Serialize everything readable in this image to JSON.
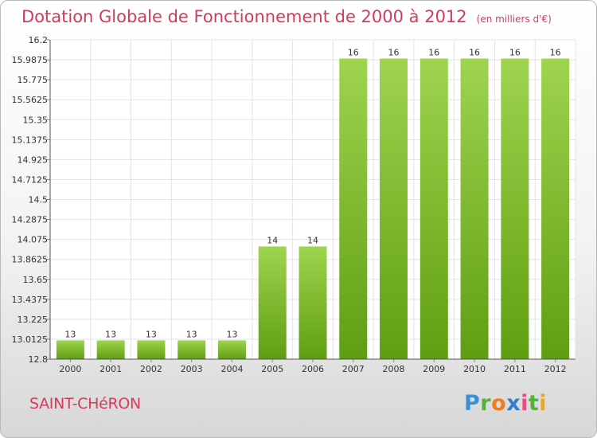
{
  "header": {
    "title": "Dotation Globale de Fonctionnement de 2000 à 2012",
    "subtitle": "(en milliers d'€)"
  },
  "footer": {
    "commune": "SAINT-CHéRON",
    "logo": {
      "p": "P",
      "r": "r",
      "o": "o",
      "x": "x",
      "i1": "i",
      "t": "t",
      "i2": "i"
    }
  },
  "colors": {
    "bar_top": "#9fd44e",
    "bar_bottom": "#5f9e12",
    "title": "#d23c5a",
    "grid": "#e3e3e3"
  },
  "chart_data": {
    "type": "bar",
    "title": "Dotation Globale de Fonctionnement de 2000 à 2012",
    "subtitle": "(en milliers d'€)",
    "categories": [
      "2000",
      "2001",
      "2002",
      "2003",
      "2004",
      "2005",
      "2006",
      "2007",
      "2008",
      "2009",
      "2010",
      "2011",
      "2012"
    ],
    "values": [
      13.0,
      13.0,
      13.0,
      13.0,
      13.0,
      14.0,
      14.0,
      16.0,
      16.0,
      16.0,
      16.0,
      16.0,
      16.0
    ],
    "data_labels": [
      "13",
      "13",
      "13",
      "13",
      "13",
      "14",
      "14",
      "16",
      "16",
      "16",
      "16",
      "16",
      "16"
    ],
    "yticks": [
      "12.8",
      "13.0125",
      "13.225",
      "13.4375",
      "13.65",
      "13.8625",
      "14.075",
      "14.2875",
      "14.5",
      "14.7125",
      "14.925",
      "15.1375",
      "15.35",
      "15.5625",
      "15.775",
      "15.9875",
      "16.2"
    ],
    "ylim": [
      12.8,
      16.2
    ],
    "xlabel": "",
    "ylabel": "",
    "grid": true
  }
}
